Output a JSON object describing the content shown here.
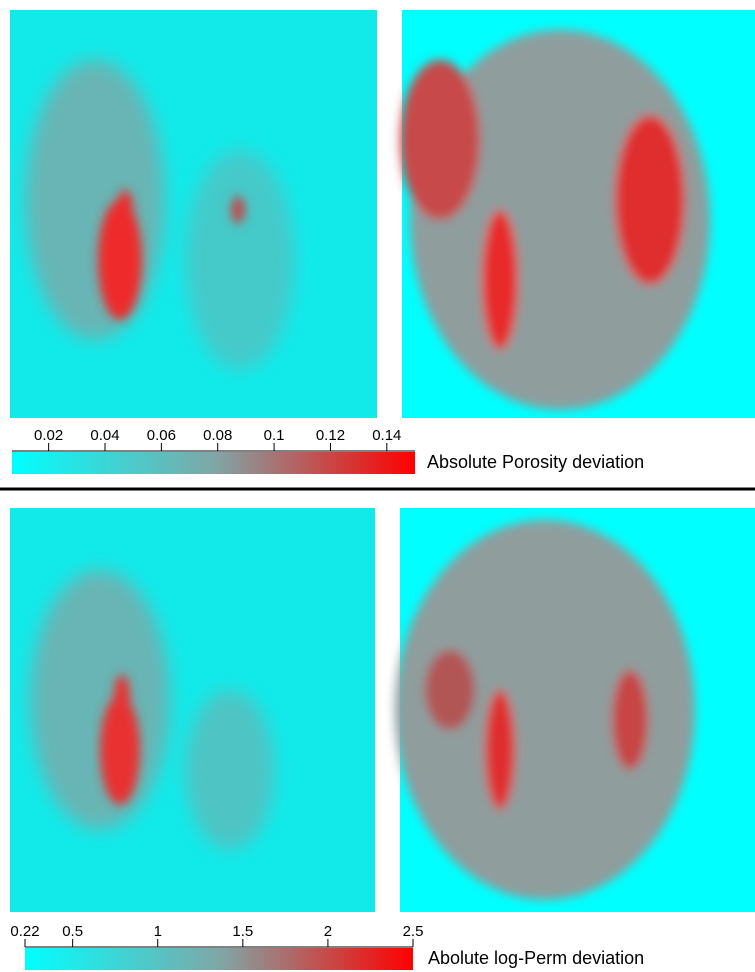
{
  "chart_data": [
    {
      "type": "colorbar",
      "label": "Absolute Porosity deviation",
      "xlim": [
        0.007,
        0.15
      ],
      "xticks": [
        0.02,
        0.04,
        0.06,
        0.08,
        0.1,
        0.12,
        0.14
      ],
      "colors": [
        "#00ffff",
        "#7fa7a7",
        "#ff0000"
      ]
    },
    {
      "type": "colorbar",
      "label": "Abolute log-Perm deviation",
      "xlim": [
        0.22,
        2.5
      ],
      "xticks": [
        0.22,
        0.5,
        1,
        1.5,
        2,
        2.5
      ],
      "colors": [
        "#00ffff",
        "#7fa7a7",
        "#ff0000"
      ]
    }
  ]
}
